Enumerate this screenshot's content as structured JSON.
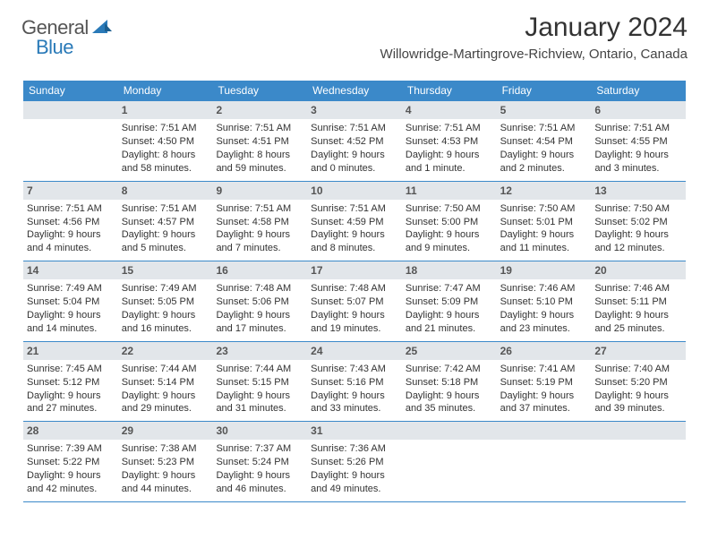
{
  "brand": {
    "part1": "General",
    "part2": "Blue"
  },
  "title": "January 2024",
  "location": "Willowridge-Martingrove-Richview, Ontario, Canada",
  "days_of_week": [
    "Sunday",
    "Monday",
    "Tuesday",
    "Wednesday",
    "Thursday",
    "Friday",
    "Saturday"
  ],
  "colors": {
    "header_bg": "#3b89c9",
    "header_text": "#ffffff",
    "daynum_bg": "#e2e6ea",
    "row_border": "#3b89c9",
    "text": "#333333",
    "brand_blue": "#2a7ab8"
  },
  "weeks": [
    [
      {
        "num": "",
        "l1": "",
        "l2": "",
        "l3": "",
        "l4": ""
      },
      {
        "num": "1",
        "l1": "Sunrise: 7:51 AM",
        "l2": "Sunset: 4:50 PM",
        "l3": "Daylight: 8 hours",
        "l4": "and 58 minutes."
      },
      {
        "num": "2",
        "l1": "Sunrise: 7:51 AM",
        "l2": "Sunset: 4:51 PM",
        "l3": "Daylight: 8 hours",
        "l4": "and 59 minutes."
      },
      {
        "num": "3",
        "l1": "Sunrise: 7:51 AM",
        "l2": "Sunset: 4:52 PM",
        "l3": "Daylight: 9 hours",
        "l4": "and 0 minutes."
      },
      {
        "num": "4",
        "l1": "Sunrise: 7:51 AM",
        "l2": "Sunset: 4:53 PM",
        "l3": "Daylight: 9 hours",
        "l4": "and 1 minute."
      },
      {
        "num": "5",
        "l1": "Sunrise: 7:51 AM",
        "l2": "Sunset: 4:54 PM",
        "l3": "Daylight: 9 hours",
        "l4": "and 2 minutes."
      },
      {
        "num": "6",
        "l1": "Sunrise: 7:51 AM",
        "l2": "Sunset: 4:55 PM",
        "l3": "Daylight: 9 hours",
        "l4": "and 3 minutes."
      }
    ],
    [
      {
        "num": "7",
        "l1": "Sunrise: 7:51 AM",
        "l2": "Sunset: 4:56 PM",
        "l3": "Daylight: 9 hours",
        "l4": "and 4 minutes."
      },
      {
        "num": "8",
        "l1": "Sunrise: 7:51 AM",
        "l2": "Sunset: 4:57 PM",
        "l3": "Daylight: 9 hours",
        "l4": "and 5 minutes."
      },
      {
        "num": "9",
        "l1": "Sunrise: 7:51 AM",
        "l2": "Sunset: 4:58 PM",
        "l3": "Daylight: 9 hours",
        "l4": "and 7 minutes."
      },
      {
        "num": "10",
        "l1": "Sunrise: 7:51 AM",
        "l2": "Sunset: 4:59 PM",
        "l3": "Daylight: 9 hours",
        "l4": "and 8 minutes."
      },
      {
        "num": "11",
        "l1": "Sunrise: 7:50 AM",
        "l2": "Sunset: 5:00 PM",
        "l3": "Daylight: 9 hours",
        "l4": "and 9 minutes."
      },
      {
        "num": "12",
        "l1": "Sunrise: 7:50 AM",
        "l2": "Sunset: 5:01 PM",
        "l3": "Daylight: 9 hours",
        "l4": "and 11 minutes."
      },
      {
        "num": "13",
        "l1": "Sunrise: 7:50 AM",
        "l2": "Sunset: 5:02 PM",
        "l3": "Daylight: 9 hours",
        "l4": "and 12 minutes."
      }
    ],
    [
      {
        "num": "14",
        "l1": "Sunrise: 7:49 AM",
        "l2": "Sunset: 5:04 PM",
        "l3": "Daylight: 9 hours",
        "l4": "and 14 minutes."
      },
      {
        "num": "15",
        "l1": "Sunrise: 7:49 AM",
        "l2": "Sunset: 5:05 PM",
        "l3": "Daylight: 9 hours",
        "l4": "and 16 minutes."
      },
      {
        "num": "16",
        "l1": "Sunrise: 7:48 AM",
        "l2": "Sunset: 5:06 PM",
        "l3": "Daylight: 9 hours",
        "l4": "and 17 minutes."
      },
      {
        "num": "17",
        "l1": "Sunrise: 7:48 AM",
        "l2": "Sunset: 5:07 PM",
        "l3": "Daylight: 9 hours",
        "l4": "and 19 minutes."
      },
      {
        "num": "18",
        "l1": "Sunrise: 7:47 AM",
        "l2": "Sunset: 5:09 PM",
        "l3": "Daylight: 9 hours",
        "l4": "and 21 minutes."
      },
      {
        "num": "19",
        "l1": "Sunrise: 7:46 AM",
        "l2": "Sunset: 5:10 PM",
        "l3": "Daylight: 9 hours",
        "l4": "and 23 minutes."
      },
      {
        "num": "20",
        "l1": "Sunrise: 7:46 AM",
        "l2": "Sunset: 5:11 PM",
        "l3": "Daylight: 9 hours",
        "l4": "and 25 minutes."
      }
    ],
    [
      {
        "num": "21",
        "l1": "Sunrise: 7:45 AM",
        "l2": "Sunset: 5:12 PM",
        "l3": "Daylight: 9 hours",
        "l4": "and 27 minutes."
      },
      {
        "num": "22",
        "l1": "Sunrise: 7:44 AM",
        "l2": "Sunset: 5:14 PM",
        "l3": "Daylight: 9 hours",
        "l4": "and 29 minutes."
      },
      {
        "num": "23",
        "l1": "Sunrise: 7:44 AM",
        "l2": "Sunset: 5:15 PM",
        "l3": "Daylight: 9 hours",
        "l4": "and 31 minutes."
      },
      {
        "num": "24",
        "l1": "Sunrise: 7:43 AM",
        "l2": "Sunset: 5:16 PM",
        "l3": "Daylight: 9 hours",
        "l4": "and 33 minutes."
      },
      {
        "num": "25",
        "l1": "Sunrise: 7:42 AM",
        "l2": "Sunset: 5:18 PM",
        "l3": "Daylight: 9 hours",
        "l4": "and 35 minutes."
      },
      {
        "num": "26",
        "l1": "Sunrise: 7:41 AM",
        "l2": "Sunset: 5:19 PM",
        "l3": "Daylight: 9 hours",
        "l4": "and 37 minutes."
      },
      {
        "num": "27",
        "l1": "Sunrise: 7:40 AM",
        "l2": "Sunset: 5:20 PM",
        "l3": "Daylight: 9 hours",
        "l4": "and 39 minutes."
      }
    ],
    [
      {
        "num": "28",
        "l1": "Sunrise: 7:39 AM",
        "l2": "Sunset: 5:22 PM",
        "l3": "Daylight: 9 hours",
        "l4": "and 42 minutes."
      },
      {
        "num": "29",
        "l1": "Sunrise: 7:38 AM",
        "l2": "Sunset: 5:23 PM",
        "l3": "Daylight: 9 hours",
        "l4": "and 44 minutes."
      },
      {
        "num": "30",
        "l1": "Sunrise: 7:37 AM",
        "l2": "Sunset: 5:24 PM",
        "l3": "Daylight: 9 hours",
        "l4": "and 46 minutes."
      },
      {
        "num": "31",
        "l1": "Sunrise: 7:36 AM",
        "l2": "Sunset: 5:26 PM",
        "l3": "Daylight: 9 hours",
        "l4": "and 49 minutes."
      },
      {
        "num": "",
        "l1": "",
        "l2": "",
        "l3": "",
        "l4": ""
      },
      {
        "num": "",
        "l1": "",
        "l2": "",
        "l3": "",
        "l4": ""
      },
      {
        "num": "",
        "l1": "",
        "l2": "",
        "l3": "",
        "l4": ""
      }
    ]
  ]
}
